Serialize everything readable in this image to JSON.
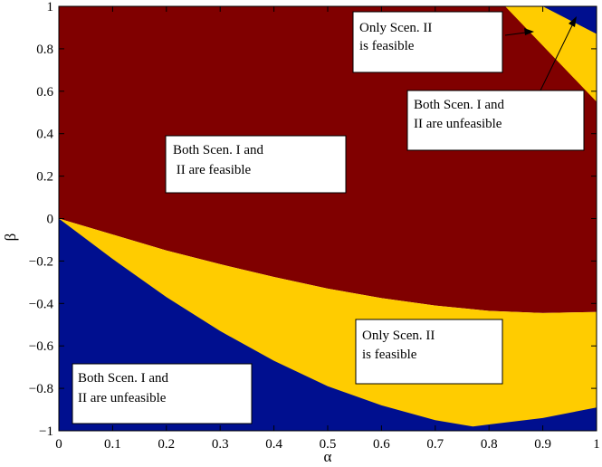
{
  "chart_data": {
    "type": "area",
    "title": "",
    "xlabel": "α",
    "ylabel": "β",
    "xlim": [
      0,
      1
    ],
    "ylim": [
      -1,
      1
    ],
    "xticks": [
      "0",
      "0.1",
      "0.2",
      "0.3",
      "0.4",
      "0.5",
      "0.6",
      "0.7",
      "0.8",
      "0.9",
      "1"
    ],
    "yticks": [
      "−1",
      "−0.8",
      "−0.6",
      "−0.4",
      "−0.2",
      "0",
      "0.2",
      "0.4",
      "0.6",
      "0.8",
      "1"
    ],
    "colors": {
      "both_feasible": "#800000",
      "only_scen_ii_feasible": "#ffcc00",
      "both_unfeasible": "#000f8f"
    },
    "boundaries": {
      "lower_unfeasible_upper_edge": {
        "x": [
          0,
          0.1,
          0.2,
          0.3,
          0.4,
          0.5,
          0.6,
          0.7,
          0.77,
          0.8,
          0.9,
          1.0
        ],
        "y": [
          0,
          -0.19,
          -0.37,
          -0.53,
          -0.67,
          -0.79,
          -0.88,
          -0.95,
          -0.98,
          -0.97,
          -0.94,
          -0.89
        ]
      },
      "feasible_lower_edge": {
        "x": [
          0,
          0.1,
          0.2,
          0.3,
          0.4,
          0.5,
          0.6,
          0.7,
          0.8,
          0.9,
          1.0
        ],
        "y": [
          0,
          -0.075,
          -0.15,
          -0.215,
          -0.275,
          -0.33,
          -0.375,
          -0.41,
          -0.435,
          -0.445,
          -0.44
        ]
      },
      "upper_right_band": {
        "outer_edge": {
          "x": [
            0.9,
            1.0
          ],
          "y": [
            1.0,
            0.87
          ]
        },
        "inner_edge": {
          "x": [
            0.83,
            1.0
          ],
          "y": [
            1.0,
            0.55
          ]
        }
      }
    },
    "annotations": [
      {
        "id": "both-feasible",
        "lines": [
          "Both Scen. I and",
          " II are feasible"
        ]
      },
      {
        "id": "only-ii-top",
        "lines": [
          "Only Scen. II",
          "is feasible"
        ]
      },
      {
        "id": "both-unfeasible-top",
        "lines": [
          "Both Scen. I and",
          "II are unfeasible"
        ]
      },
      {
        "id": "only-ii-bottom",
        "lines": [
          "Only Scen. II",
          "is feasible"
        ]
      },
      {
        "id": "both-unfeasible-bottom",
        "lines": [
          "Both Scen. I and",
          "II are unfeasible"
        ]
      }
    ]
  }
}
